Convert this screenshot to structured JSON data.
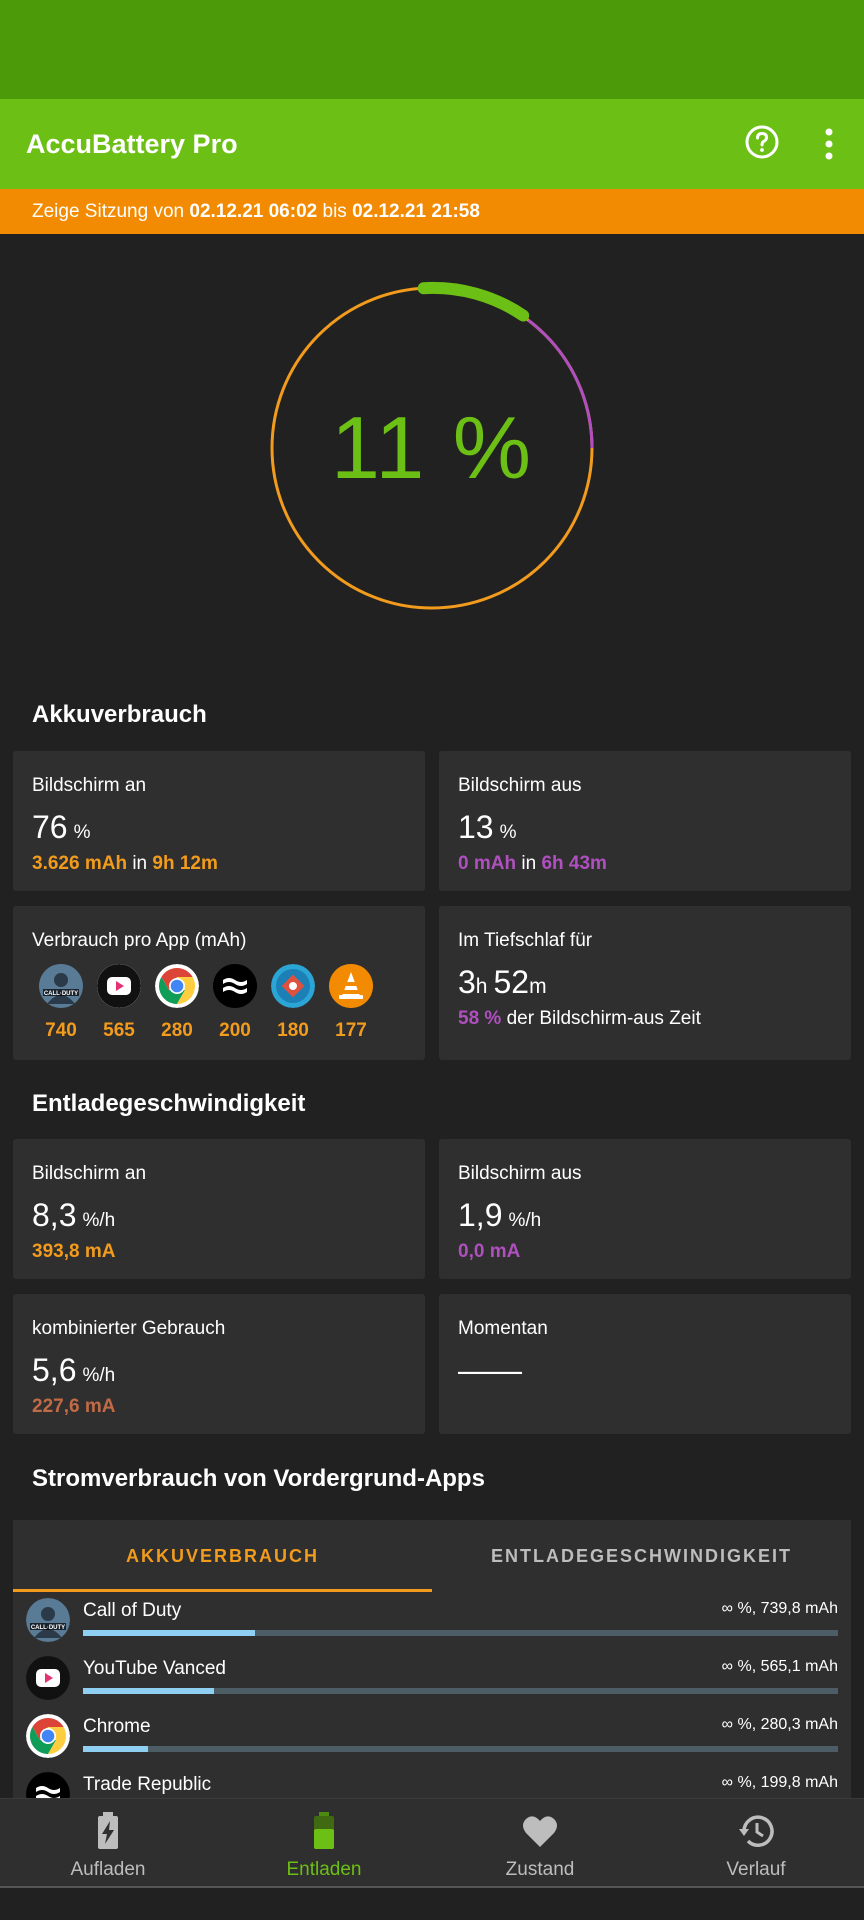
{
  "app": {
    "title": "AccuBattery Pro",
    "accent": "#6cbf14",
    "help_icon": "help-circle-icon",
    "more_icon": "more-vert-icon"
  },
  "session": {
    "prefix": "Zeige Sitzung von ",
    "from": "02.12.21 06:02",
    "mid": " bis ",
    "to": "02.12.21 21:58"
  },
  "gauge": {
    "value_text": "11 %",
    "percent": 11
  },
  "usage": {
    "title": "Akkuverbrauch",
    "screen_on": {
      "label": "Bildschirm an",
      "value": "76",
      "unit": "%",
      "mah": "3.626 mAh",
      "in": " in ",
      "time": "9h 12m"
    },
    "screen_off": {
      "label": "Bildschirm aus",
      "value": "13",
      "unit": "%",
      "mah": "0 mAh",
      "in": " in ",
      "time": "6h 43m"
    },
    "per_app": {
      "label": "Verbrauch pro App (mAh)",
      "apps": [
        {
          "icon": "call-of-duty-icon",
          "value": "740"
        },
        {
          "icon": "youtube-vanced-icon",
          "value": "565"
        },
        {
          "icon": "chrome-icon",
          "value": "280"
        },
        {
          "icon": "trade-republic-icon",
          "value": "200"
        },
        {
          "icon": "app-icon-blue",
          "value": "180"
        },
        {
          "icon": "vlc-icon",
          "value": "177"
        }
      ]
    },
    "deep_sleep": {
      "label": "Im Tiefschlaf für",
      "hours": "3",
      "h_unit": "h",
      "minutes": "52",
      "m_unit": "m",
      "pct": "58 %",
      "rest": " der Bildschirm-aus Zeit"
    }
  },
  "discharge": {
    "title": "Entladegeschwindigkeit",
    "screen_on": {
      "label": "Bildschirm an",
      "value": "8,3",
      "unit": "%/h",
      "ma": "393,8 mA"
    },
    "screen_off": {
      "label": "Bildschirm aus",
      "value": "1,9",
      "unit": "%/h",
      "ma": "0,0 mA"
    },
    "combined": {
      "label": "kombinierter Gebrauch",
      "value": "5,6",
      "unit": "%/h",
      "ma": "227,6 mA"
    },
    "current": {
      "label": "Momentan",
      "value": "——"
    }
  },
  "foreground": {
    "title": "Stromverbrauch von Vordergrund-Apps",
    "tabs": [
      "AKKUVERBRAUCH",
      "ENTLADEGESCHWINDIGKEIT"
    ],
    "rows": [
      {
        "name": "Call of Duty",
        "value": "∞ %, 739,8 mAh",
        "share": 0.228
      },
      {
        "name": "YouTube Vanced",
        "value": "∞ %, 565,1 mAh",
        "share": 0.174
      },
      {
        "name": "Chrome",
        "value": "∞ %, 280,3 mAh",
        "share": 0.086
      },
      {
        "name": "Trade Republic",
        "value": "∞ %, 199,8 mAh",
        "share": 0.062
      }
    ]
  },
  "nav": {
    "items": [
      {
        "label": "Aufladen",
        "icon": "battery-charging-icon"
      },
      {
        "label": "Entladen",
        "icon": "battery-icon"
      },
      {
        "label": "Zustand",
        "icon": "heart-icon"
      },
      {
        "label": "Verlauf",
        "icon": "history-icon"
      }
    ],
    "active": "Entladen"
  }
}
